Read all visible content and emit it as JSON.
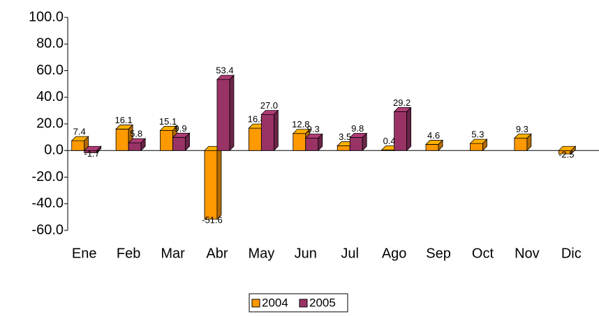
{
  "chart_data": {
    "type": "bar3d",
    "categories": [
      "Ene",
      "Feb",
      "Mar",
      "Abr",
      "May",
      "Jun",
      "Jul",
      "Ago",
      "Sep",
      "Oct",
      "Nov",
      "Dic"
    ],
    "series": [
      {
        "name": "2004",
        "color": "#ff9900",
        "values": [
          7.4,
          16.1,
          15.1,
          -51.6,
          16.8,
          12.8,
          3.5,
          0.4,
          4.6,
          5.3,
          9.3,
          -2.5
        ],
        "value_labels": [
          "7.4",
          "16.1",
          "15.1",
          "-51.6",
          "16.8",
          "12.8",
          "3.5",
          "0.4",
          "4.6",
          "5.3",
          "9.3",
          "-2.5"
        ]
      },
      {
        "name": "2005",
        "color": "#993366",
        "values": [
          -1.7,
          5.8,
          9.9,
          53.4,
          27.0,
          9.3,
          9.8,
          29.2,
          null,
          null,
          null,
          null
        ],
        "value_labels": [
          "-1.7",
          "5.8",
          "9.9",
          "53.4",
          "27.0",
          "9.3",
          "9.8",
          "29.2",
          null,
          null,
          null,
          null
        ]
      }
    ],
    "ylim": [
      -60,
      100
    ],
    "yticks": [
      {
        "value": -60,
        "label": "-60.0"
      },
      {
        "value": -40,
        "label": "-40.0"
      },
      {
        "value": -20,
        "label": "-20.0"
      },
      {
        "value": 0,
        "label": "0.0"
      },
      {
        "value": 20,
        "label": "20.0"
      },
      {
        "value": 40,
        "label": "40.0"
      },
      {
        "value": 60,
        "label": "60.0"
      },
      {
        "value": 80,
        "label": "80.0"
      },
      {
        "value": 100,
        "label": "100.0"
      }
    ],
    "legend": "bottom"
  }
}
